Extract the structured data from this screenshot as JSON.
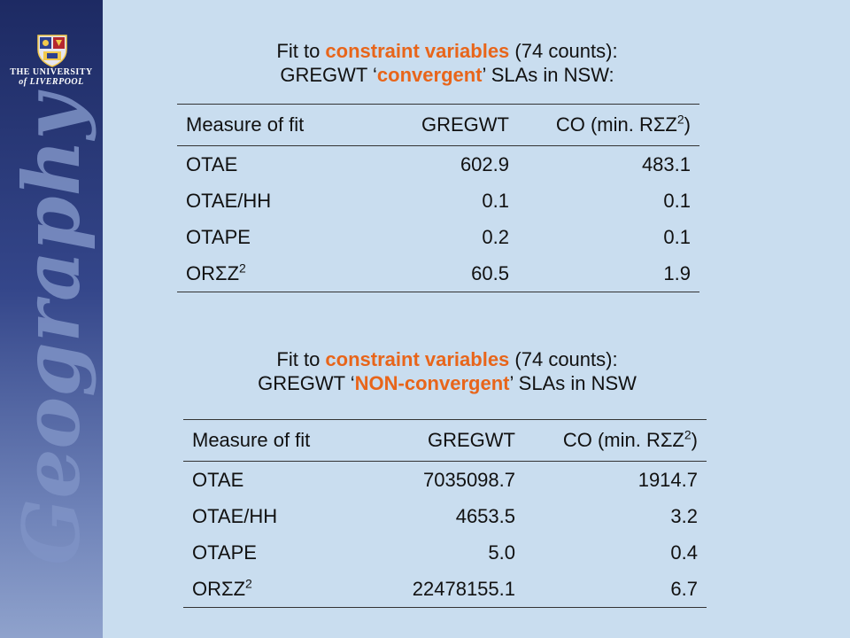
{
  "branding": {
    "uni_line1": "THE UNIVERSITY",
    "uni_line2": "of LIVERPOOL",
    "side_word": "Geography",
    "crest_icon": "university-crest-icon"
  },
  "section1": {
    "title_pre": "Fit to ",
    "title_em": "constraint variables",
    "title_post": " (74 counts):",
    "sub_pre": "GREGWT ‘",
    "sub_em": "convergent",
    "sub_post": "’ SLAs in NSW:",
    "headers": {
      "measure": "Measure of fit",
      "gregwt": "GREGWT",
      "co": "CO (min. RΣZ",
      "co_sup": "2",
      "co_close": ")"
    },
    "rows": [
      {
        "measure": "OTAE",
        "sup": "",
        "gregwt": "602.9",
        "co": "483.1"
      },
      {
        "measure": "OTAE/HH",
        "sup": "",
        "gregwt": "0.1",
        "co": "0.1"
      },
      {
        "measure": "OTAPE",
        "sup": "",
        "gregwt": "0.2",
        "co": "0.1"
      },
      {
        "measure": "ORΣZ",
        "sup": "2",
        "gregwt": "60.5",
        "co": "1.9"
      }
    ]
  },
  "section2": {
    "title_pre": "Fit to ",
    "title_em": "constraint variables",
    "title_post": " (74 counts):",
    "sub_pre": "GREGWT ‘",
    "sub_em": "NON-convergent",
    "sub_post": "’ SLAs in NSW",
    "headers": {
      "measure": "Measure of fit",
      "gregwt": "GREGWT",
      "co": "CO (min. RΣZ",
      "co_sup": "2",
      "co_close": ")"
    },
    "rows": [
      {
        "measure": "OTAE",
        "sup": "",
        "gregwt": "7035098.7",
        "co": "1914.7"
      },
      {
        "measure": "OTAE/HH",
        "sup": "",
        "gregwt": "4653.5",
        "co": "3.2"
      },
      {
        "measure": "OTAPE",
        "sup": "",
        "gregwt": "5.0",
        "co": "0.4"
      },
      {
        "measure": "ORΣZ",
        "sup": "2",
        "gregwt": "22478155.1",
        "co": "6.7"
      }
    ]
  }
}
